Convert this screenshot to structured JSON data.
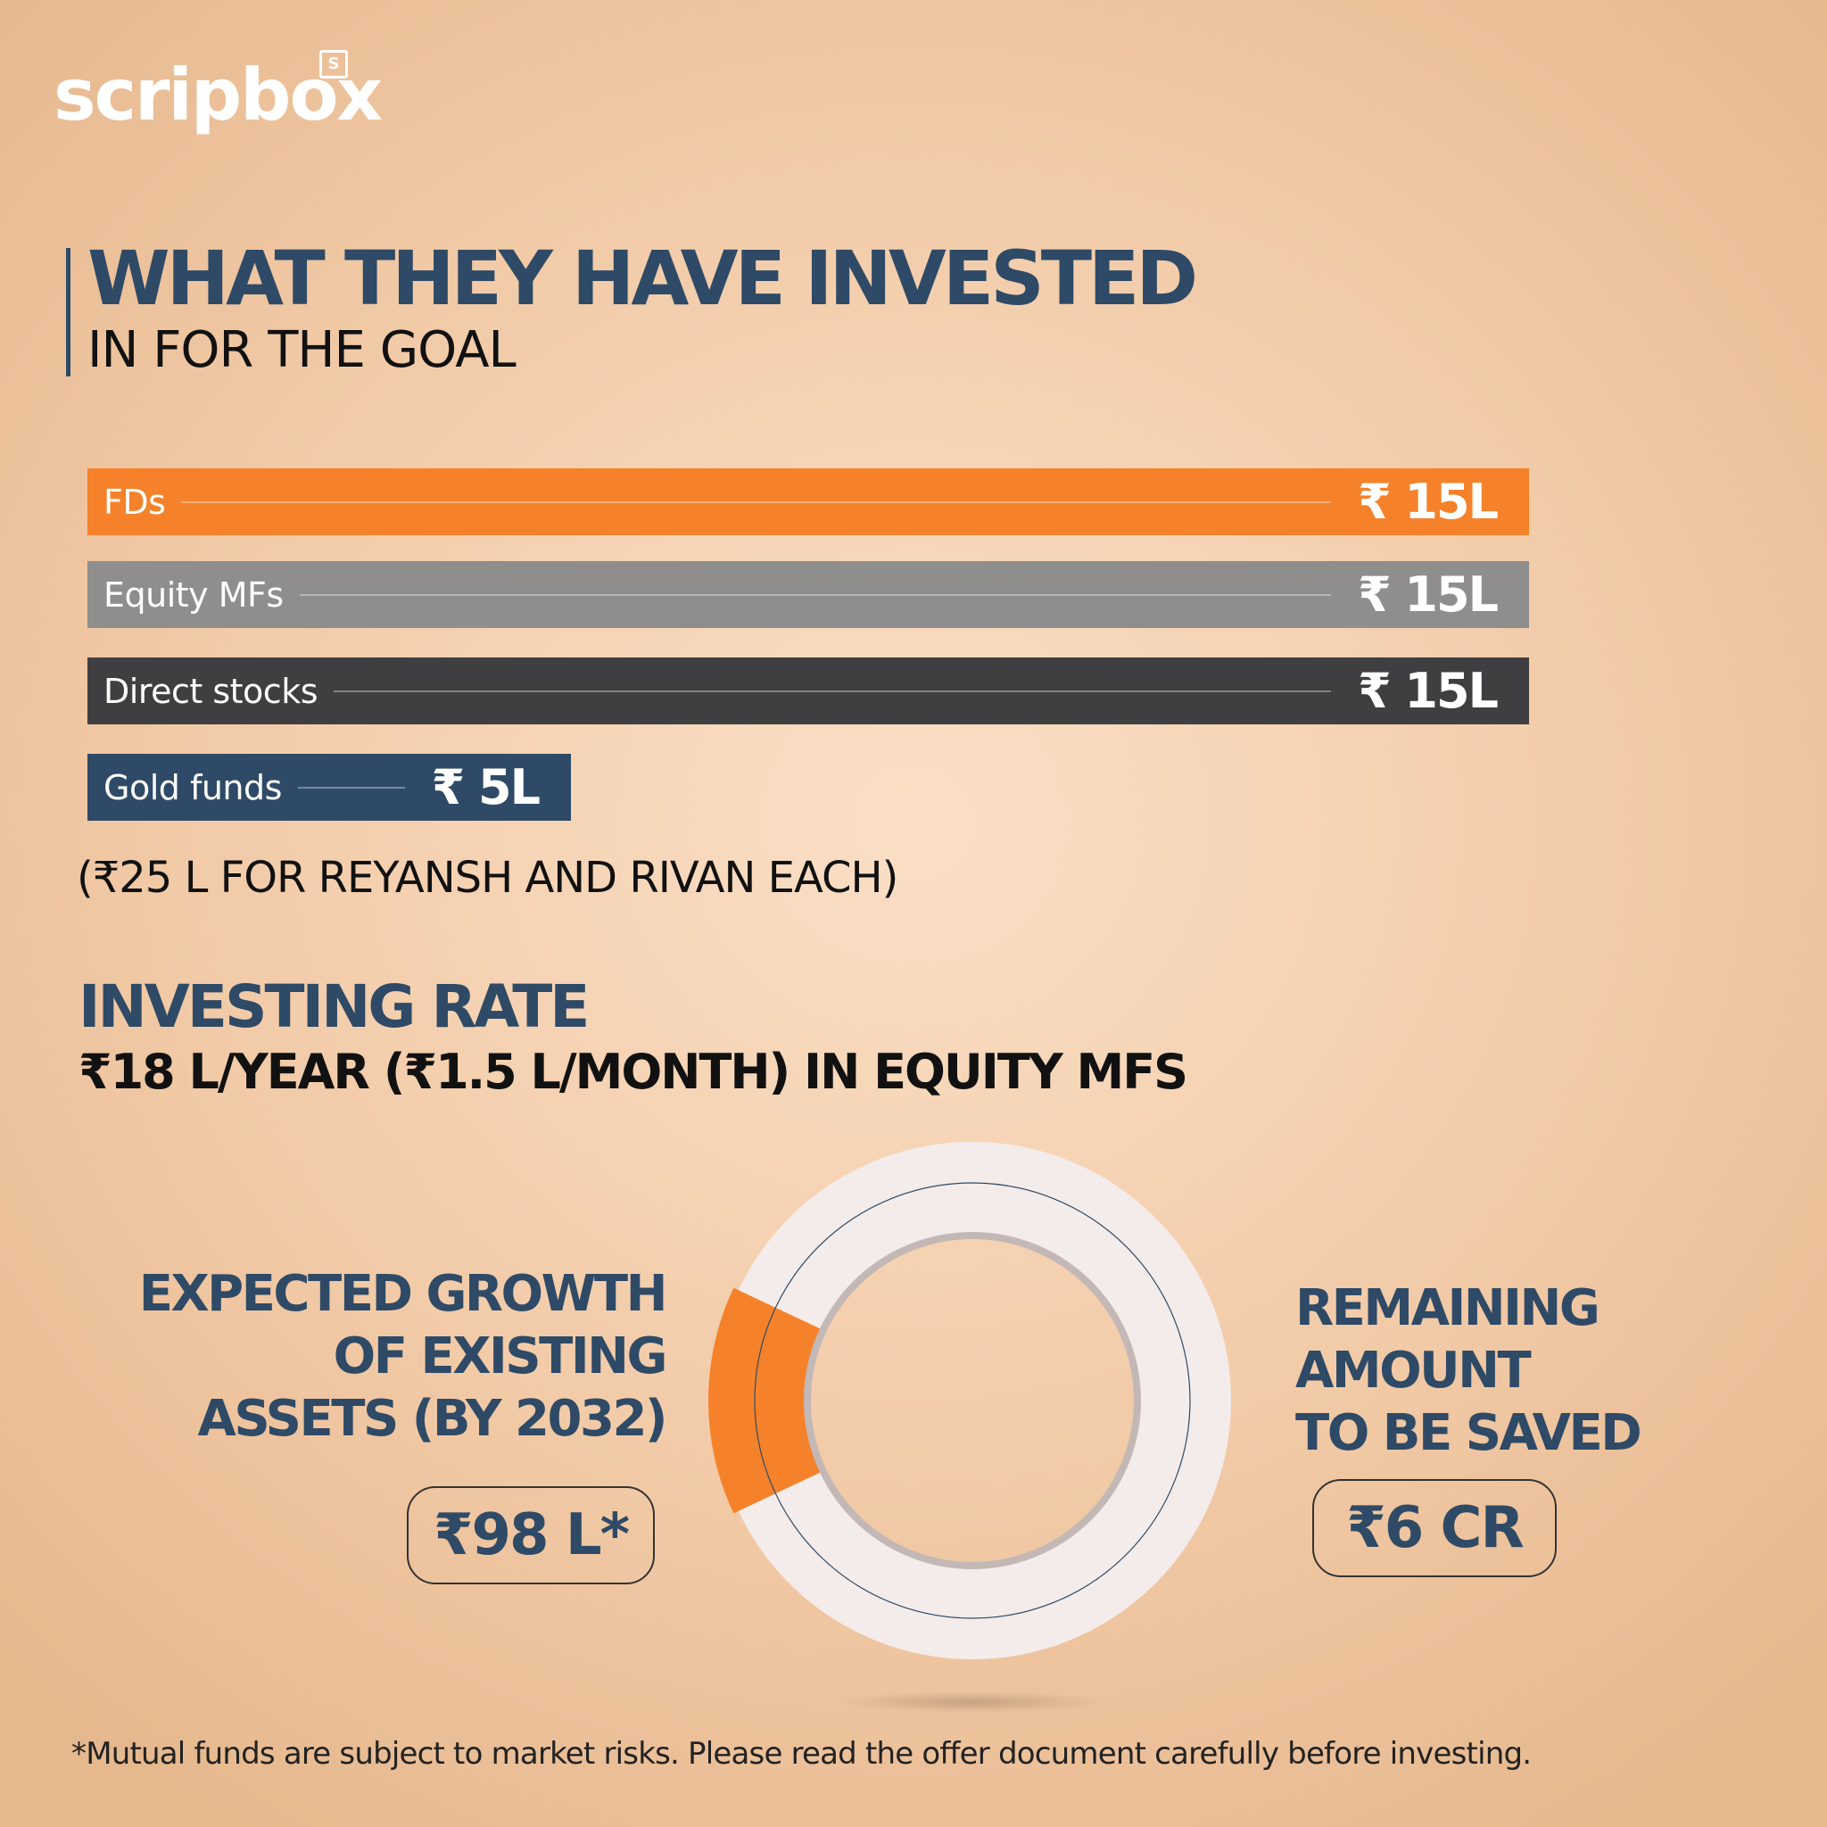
{
  "brand": {
    "name": "scripbox",
    "badge": "S"
  },
  "title": {
    "main": "WHAT THEY HAVE INVESTED",
    "sub": "IN FOR THE GOAL"
  },
  "colors": {
    "navy": "#2e4a66",
    "orange": "#f5822a",
    "grey": "#8f8e8c",
    "dark": "#3f3f41",
    "ring": "#f4ecea"
  },
  "chart_data": [
    {
      "type": "bar",
      "title": "WHAT THEY HAVE INVESTED IN FOR THE GOAL",
      "categories": [
        "FDs",
        "Equity MFs",
        "Direct stocks",
        "Gold funds"
      ],
      "values": [
        15,
        15,
        15,
        5
      ],
      "value_labels": [
        "₹ 15L",
        "₹ 15L",
        "₹ 15L",
        "₹ 5L"
      ],
      "unit": "₹ L",
      "xlim": [
        0,
        15
      ]
    },
    {
      "type": "pie",
      "style": "donut",
      "slices": [
        {
          "label": "EXPECTED GROWTH OF EXISTING ASSETS (BY 2032)",
          "value": 0.98,
          "display": "₹98 L*"
        },
        {
          "label": "REMAINING AMOUNT TO BE SAVED",
          "value": 6,
          "display": "₹6 CR"
        }
      ],
      "unit": "₹ CR"
    }
  ],
  "note": "(₹25 L FOR REYANSH AND RIVAN EACH)",
  "investing_rate": {
    "heading": "INVESTING RATE",
    "detail": "₹18 L/YEAR (₹1.5 L/MONTH) IN EQUITY MFS"
  },
  "expected_growth": {
    "lines": [
      "EXPECTED GROWTH",
      "OF EXISTING",
      "ASSETS (BY 2032)"
    ],
    "value": "₹98 L*"
  },
  "remaining": {
    "lines": [
      "REMAINING",
      "AMOUNT",
      "TO BE SAVED"
    ],
    "value": "₹6 CR"
  },
  "disclaimer": "*Mutual funds are subject to market risks. Please read the offer document carefully before investing."
}
